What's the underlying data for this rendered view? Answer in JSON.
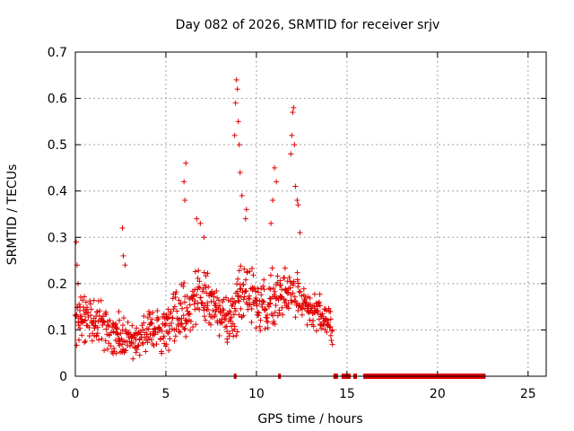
{
  "chart_data": {
    "type": "scatter",
    "title": "Day 082 of 2026, SRMTID for receiver srjv",
    "xlabel": "GPS time / hours",
    "ylabel": "SRMTID / TECUs",
    "xlim": [
      0,
      26
    ],
    "ylim": [
      0,
      0.7
    ],
    "grid": true,
    "series_color": "#e00000",
    "x_ticks": [
      {
        "value": 0,
        "label": "0"
      },
      {
        "value": 5,
        "label": "5"
      },
      {
        "value": 10,
        "label": "10"
      },
      {
        "value": 15,
        "label": "15"
      },
      {
        "value": 20,
        "label": "20"
      },
      {
        "value": 25,
        "label": "25"
      }
    ],
    "y_ticks": [
      {
        "value": 0,
        "label": "0"
      },
      {
        "value": 0.1,
        "label": "0.1"
      },
      {
        "value": 0.2,
        "label": "0.2"
      },
      {
        "value": 0.3,
        "label": "0.3"
      },
      {
        "value": 0.4,
        "label": "0.4"
      },
      {
        "value": 0.5,
        "label": "0.5"
      },
      {
        "value": 0.6,
        "label": "0.6"
      },
      {
        "value": 0.7,
        "label": "0.7"
      }
    ],
    "peaks": [
      {
        "x": 0.05,
        "y": 0.29
      },
      {
        "x": 0.1,
        "y": 0.24
      },
      {
        "x": 0.15,
        "y": 0.2
      },
      {
        "x": 2.6,
        "y": 0.32
      },
      {
        "x": 2.65,
        "y": 0.26
      },
      {
        "x": 2.75,
        "y": 0.24
      },
      {
        "x": 6.0,
        "y": 0.42
      },
      {
        "x": 6.1,
        "y": 0.46
      },
      {
        "x": 6.05,
        "y": 0.38
      },
      {
        "x": 6.7,
        "y": 0.34
      },
      {
        "x": 6.9,
        "y": 0.33
      },
      {
        "x": 7.1,
        "y": 0.3
      },
      {
        "x": 8.9,
        "y": 0.64
      },
      {
        "x": 8.95,
        "y": 0.62
      },
      {
        "x": 8.85,
        "y": 0.59
      },
      {
        "x": 9.0,
        "y": 0.55
      },
      {
        "x": 8.8,
        "y": 0.52
      },
      {
        "x": 9.05,
        "y": 0.5
      },
      {
        "x": 9.1,
        "y": 0.44
      },
      {
        "x": 9.2,
        "y": 0.39
      },
      {
        "x": 9.4,
        "y": 0.34
      },
      {
        "x": 9.45,
        "y": 0.36
      },
      {
        "x": 10.9,
        "y": 0.38
      },
      {
        "x": 11.0,
        "y": 0.45
      },
      {
        "x": 11.1,
        "y": 0.42
      },
      {
        "x": 10.8,
        "y": 0.33
      },
      {
        "x": 11.95,
        "y": 0.52
      },
      {
        "x": 12.0,
        "y": 0.57
      },
      {
        "x": 12.05,
        "y": 0.58
      },
      {
        "x": 12.1,
        "y": 0.5
      },
      {
        "x": 11.9,
        "y": 0.48
      },
      {
        "x": 12.15,
        "y": 0.41
      },
      {
        "x": 12.25,
        "y": 0.38
      },
      {
        "x": 12.3,
        "y": 0.37
      },
      {
        "x": 12.4,
        "y": 0.31
      }
    ],
    "envelope": [
      {
        "x": 0.0,
        "lo": 0.06,
        "hi": 0.2
      },
      {
        "x": 0.5,
        "lo": 0.05,
        "hi": 0.18
      },
      {
        "x": 1.0,
        "lo": 0.06,
        "hi": 0.17
      },
      {
        "x": 1.5,
        "lo": 0.05,
        "hi": 0.18
      },
      {
        "x": 2.0,
        "lo": 0.04,
        "hi": 0.15
      },
      {
        "x": 2.5,
        "lo": 0.03,
        "hi": 0.14
      },
      {
        "x": 3.0,
        "lo": 0.03,
        "hi": 0.12
      },
      {
        "x": 3.5,
        "lo": 0.04,
        "hi": 0.13
      },
      {
        "x": 4.0,
        "lo": 0.05,
        "hi": 0.15
      },
      {
        "x": 4.5,
        "lo": 0.05,
        "hi": 0.15
      },
      {
        "x": 5.0,
        "lo": 0.04,
        "hi": 0.16
      },
      {
        "x": 5.5,
        "lo": 0.05,
        "hi": 0.2
      },
      {
        "x": 6.0,
        "lo": 0.06,
        "hi": 0.22
      },
      {
        "x": 6.5,
        "lo": 0.08,
        "hi": 0.26
      },
      {
        "x": 7.0,
        "lo": 0.08,
        "hi": 0.25
      },
      {
        "x": 7.5,
        "lo": 0.1,
        "hi": 0.22
      },
      {
        "x": 8.0,
        "lo": 0.08,
        "hi": 0.2
      },
      {
        "x": 8.5,
        "lo": 0.06,
        "hi": 0.18
      },
      {
        "x": 9.0,
        "lo": 0.08,
        "hi": 0.24
      },
      {
        "x": 9.5,
        "lo": 0.1,
        "hi": 0.26
      },
      {
        "x": 10.0,
        "lo": 0.1,
        "hi": 0.23
      },
      {
        "x": 10.5,
        "lo": 0.08,
        "hi": 0.22
      },
      {
        "x": 11.0,
        "lo": 0.1,
        "hi": 0.25
      },
      {
        "x": 11.5,
        "lo": 0.12,
        "hi": 0.24
      },
      {
        "x": 12.0,
        "lo": 0.12,
        "hi": 0.26
      },
      {
        "x": 12.5,
        "lo": 0.12,
        "hi": 0.22
      },
      {
        "x": 13.0,
        "lo": 0.09,
        "hi": 0.18
      },
      {
        "x": 13.5,
        "lo": 0.09,
        "hi": 0.18
      },
      {
        "x": 14.0,
        "lo": 0.08,
        "hi": 0.16
      },
      {
        "x": 14.2,
        "lo": 0.05,
        "hi": 0.12
      }
    ],
    "zero_segments": [
      {
        "x_start": 8.75,
        "x_end": 8.9
      },
      {
        "x_start": 11.2,
        "x_end": 11.35
      },
      {
        "x_start": 14.25,
        "x_end": 14.5
      },
      {
        "x_start": 14.7,
        "x_end": 15.2
      },
      {
        "x_start": 15.35,
        "x_end": 15.55
      },
      {
        "x_start": 15.9,
        "x_end": 22.65
      }
    ]
  }
}
